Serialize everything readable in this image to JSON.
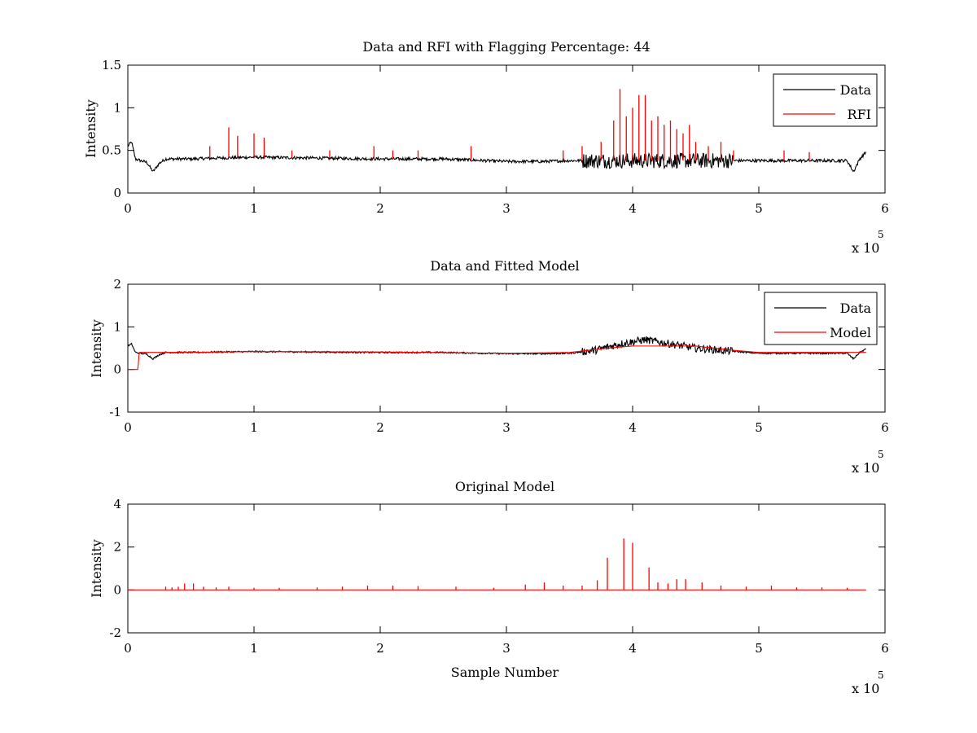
{
  "figure": {
    "background": "#ffffff",
    "axis_color": "#000000"
  },
  "chart_data": [
    {
      "type": "line",
      "title": "Data and RFI with Flagging Percentage: 44",
      "xlabel": "",
      "ylabel": "Intensity",
      "xlim": [
        0,
        6
      ],
      "ylim": [
        0,
        1.5
      ],
      "x_ticks": [
        "0",
        "1",
        "2",
        "3",
        "4",
        "5",
        "6"
      ],
      "y_ticks": [
        "0",
        "0.5",
        "1",
        "1.5"
      ],
      "x_multiplier": {
        "base": "x 10",
        "exponent": "5"
      },
      "legend": {
        "position": "top-right",
        "entries": [
          {
            "name": "Data",
            "color": "#000000"
          },
          {
            "name": "RFI",
            "color": "#ff0000"
          }
        ]
      },
      "series": [
        {
          "name": "Data",
          "color": "#000000",
          "x": [
            0.0,
            0.03,
            0.06,
            0.1,
            0.15,
            0.2,
            0.25,
            0.3,
            0.5,
            0.7,
            1.0,
            1.5,
            2.0,
            2.5,
            3.0,
            3.3,
            3.5,
            5.0,
            5.2,
            5.5,
            5.7,
            5.75,
            5.8,
            5.85
          ],
          "y": [
            0.55,
            0.6,
            0.4,
            0.38,
            0.36,
            0.25,
            0.35,
            0.4,
            0.4,
            0.41,
            0.42,
            0.41,
            0.4,
            0.4,
            0.37,
            0.37,
            0.38,
            0.38,
            0.38,
            0.38,
            0.38,
            0.25,
            0.4,
            0.48
          ]
        },
        {
          "name": "RFI",
          "color": "#ff0000",
          "spikes": [
            [
              0.65,
              0.55
            ],
            [
              0.8,
              0.77
            ],
            [
              0.87,
              0.67
            ],
            [
              1.0,
              0.7
            ],
            [
              1.08,
              0.65
            ],
            [
              1.3,
              0.5
            ],
            [
              1.6,
              0.5
            ],
            [
              1.95,
              0.55
            ],
            [
              2.1,
              0.5
            ],
            [
              2.3,
              0.5
            ],
            [
              2.72,
              0.55
            ],
            [
              3.45,
              0.5
            ],
            [
              3.6,
              0.55
            ],
            [
              3.75,
              0.6
            ],
            [
              3.85,
              0.85
            ],
            [
              3.9,
              1.22
            ],
            [
              3.95,
              0.9
            ],
            [
              4.0,
              1.0
            ],
            [
              4.05,
              1.15
            ],
            [
              4.1,
              1.15
            ],
            [
              4.15,
              0.85
            ],
            [
              4.2,
              0.9
            ],
            [
              4.25,
              0.8
            ],
            [
              4.3,
              0.85
            ],
            [
              4.35,
              0.75
            ],
            [
              4.4,
              0.7
            ],
            [
              4.45,
              0.8
            ],
            [
              4.5,
              0.6
            ],
            [
              4.6,
              0.55
            ],
            [
              4.7,
              0.6
            ],
            [
              4.8,
              0.5
            ],
            [
              5.2,
              0.5
            ],
            [
              5.4,
              0.48
            ]
          ]
        }
      ]
    },
    {
      "type": "line",
      "title": "Data and Fitted Model",
      "xlabel": "",
      "ylabel": "Intensity",
      "xlim": [
        0,
        6
      ],
      "ylim": [
        -1,
        2
      ],
      "x_ticks": [
        "0",
        "1",
        "2",
        "3",
        "4",
        "5",
        "6"
      ],
      "y_ticks": [
        "-1",
        "0",
        "1",
        "2"
      ],
      "x_multiplier": {
        "base": "x 10",
        "exponent": "5"
      },
      "legend": {
        "position": "top-right",
        "entries": [
          {
            "name": "Data",
            "color": "#000000"
          },
          {
            "name": "Model",
            "color": "#ff0000"
          }
        ]
      },
      "series": [
        {
          "name": "Data",
          "color": "#000000",
          "x": [
            0.0,
            0.03,
            0.06,
            0.1,
            0.15,
            0.2,
            0.25,
            0.3,
            0.5,
            0.7,
            1.0,
            1.5,
            2.0,
            2.5,
            3.0,
            3.3,
            3.5,
            3.7,
            3.9,
            4.1,
            4.3,
            4.5,
            4.7,
            5.0,
            5.2,
            5.5,
            5.7,
            5.75,
            5.8,
            5.85
          ],
          "y": [
            0.55,
            0.6,
            0.4,
            0.38,
            0.36,
            0.25,
            0.35,
            0.4,
            0.4,
            0.41,
            0.42,
            0.41,
            0.4,
            0.4,
            0.37,
            0.37,
            0.38,
            0.45,
            0.6,
            0.7,
            0.6,
            0.5,
            0.45,
            0.38,
            0.38,
            0.38,
            0.38,
            0.25,
            0.4,
            0.48
          ]
        },
        {
          "name": "Model",
          "color": "#ff0000",
          "x": [
            0.0,
            0.08,
            0.09,
            0.5,
            1.0,
            2.0,
            3.0,
            3.5,
            3.8,
            4.0,
            4.5,
            4.8,
            5.0,
            5.85
          ],
          "y": [
            0.0,
            0.0,
            0.4,
            0.4,
            0.42,
            0.41,
            0.38,
            0.4,
            0.5,
            0.55,
            0.55,
            0.45,
            0.4,
            0.4
          ]
        }
      ]
    },
    {
      "type": "line",
      "title": "Original Model",
      "xlabel": "Sample Number",
      "ylabel": "Intensity",
      "xlim": [
        0,
        6
      ],
      "ylim": [
        -2,
        4
      ],
      "x_ticks": [
        "0",
        "1",
        "2",
        "3",
        "4",
        "5",
        "6"
      ],
      "y_ticks": [
        "-2",
        "0",
        "2",
        "4"
      ],
      "x_multiplier": {
        "base": "x 10",
        "exponent": "5"
      },
      "series": [
        {
          "name": "",
          "color": "#ff0000",
          "baseline": 0,
          "x_range": [
            0.0,
            5.85
          ],
          "spikes": [
            [
              0.3,
              0.15
            ],
            [
              0.35,
              0.12
            ],
            [
              0.4,
              0.15
            ],
            [
              0.45,
              0.3
            ],
            [
              0.52,
              0.3
            ],
            [
              0.6,
              0.15
            ],
            [
              0.7,
              0.12
            ],
            [
              0.8,
              0.15
            ],
            [
              1.0,
              0.1
            ],
            [
              1.2,
              0.1
            ],
            [
              1.5,
              0.12
            ],
            [
              1.7,
              0.15
            ],
            [
              1.9,
              0.2
            ],
            [
              2.1,
              0.2
            ],
            [
              2.3,
              0.18
            ],
            [
              2.6,
              0.15
            ],
            [
              2.9,
              0.1
            ],
            [
              3.15,
              0.25
            ],
            [
              3.3,
              0.35
            ],
            [
              3.45,
              0.2
            ],
            [
              3.6,
              0.2
            ],
            [
              3.72,
              0.45
            ],
            [
              3.8,
              1.5
            ],
            [
              3.93,
              2.4
            ],
            [
              4.0,
              2.2
            ],
            [
              4.13,
              1.05
            ],
            [
              4.2,
              0.35
            ],
            [
              4.28,
              0.3
            ],
            [
              4.35,
              0.5
            ],
            [
              4.42,
              0.5
            ],
            [
              4.55,
              0.35
            ],
            [
              4.7,
              0.2
            ],
            [
              4.9,
              0.15
            ],
            [
              5.1,
              0.2
            ],
            [
              5.3,
              0.12
            ],
            [
              5.5,
              0.12
            ],
            [
              5.7,
              0.1
            ]
          ]
        }
      ]
    }
  ]
}
